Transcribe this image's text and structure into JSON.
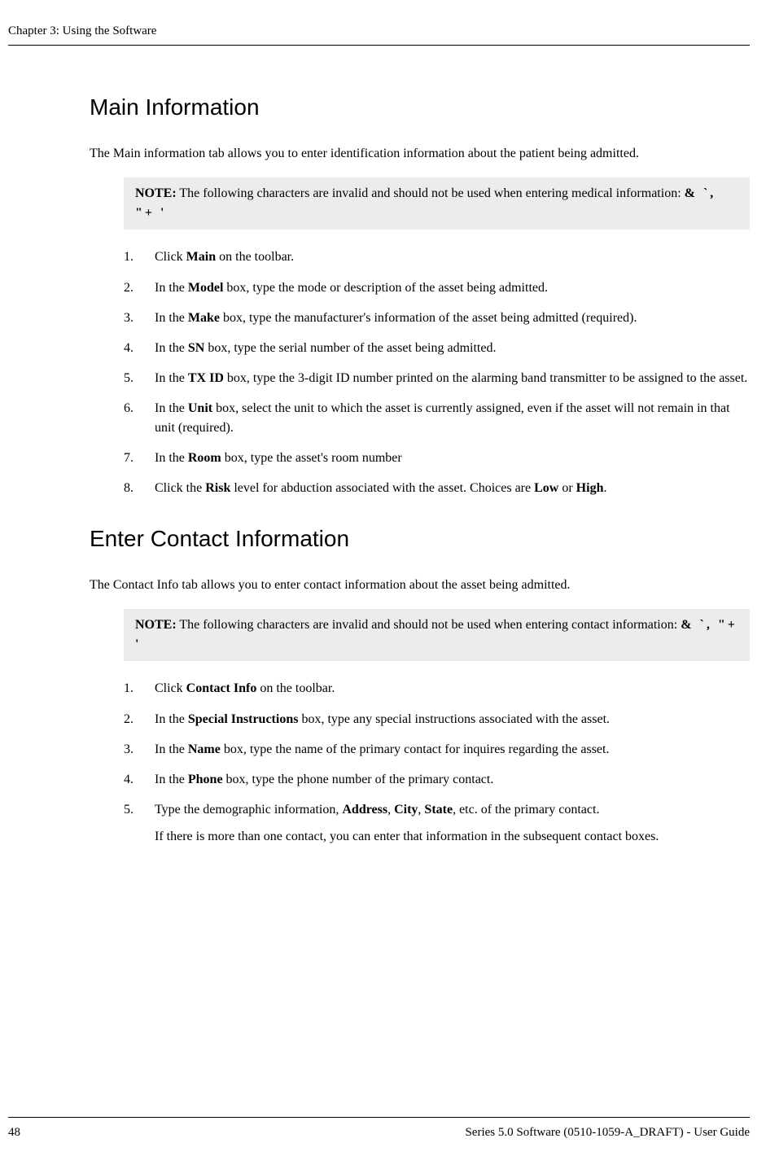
{
  "header": {
    "chapter": "Chapter 3: Using the Software"
  },
  "section1": {
    "heading": "Main Information",
    "intro": "The Main information tab allows you to enter identification information about the patient being admitted.",
    "note": {
      "label": "NOTE:",
      "text": " The following characters are invalid and should not be used when entering medical information: ",
      "chars": "&   `,   \"+   '"
    },
    "steps": [
      {
        "num": "1.",
        "prefix": "Click ",
        "bold1": "Main",
        "rest": " on the toolbar."
      },
      {
        "num": "2.",
        "prefix": "In the ",
        "bold1": "Model",
        "rest": " box, type the mode or description of the asset being admitted."
      },
      {
        "num": "3.",
        "prefix": "In the ",
        "bold1": "Make",
        "rest": " box, type the manufacturer's information of the asset being admitted (required)."
      },
      {
        "num": "4.",
        "prefix": "In the ",
        "bold1": "SN",
        "rest": " box, type the serial number of the asset being admitted."
      },
      {
        "num": "5.",
        "prefix": "In the ",
        "bold1": "TX ID",
        "rest": " box, type the 3-digit ID number printed on the alarming band transmitter to be assigned to the asset."
      },
      {
        "num": "6.",
        "prefix": "In the ",
        "bold1": "Unit",
        "rest": " box, select the unit to which the asset is currently assigned, even if the asset will not remain in that unit (required)."
      },
      {
        "num": "7.",
        "prefix": "In the ",
        "bold1": "Room",
        "rest": " box, type the asset's room number"
      },
      {
        "num": "8.",
        "prefix": "Click the ",
        "bold1": "Risk",
        "mid": " level for abduction associated with the asset. Choices are ",
        "bold2": "Low",
        "mid2": " or ",
        "bold3": "High",
        "end": "."
      }
    ]
  },
  "section2": {
    "heading": "Enter Contact Information",
    "intro": "The Contact Info tab allows you to enter contact information about the asset being admitted.",
    "note": {
      "label": "NOTE:",
      "text": " The following characters are invalid and should not be used when entering contact information: ",
      "chars": "&   `,   \"+   '"
    },
    "steps": [
      {
        "num": "1.",
        "prefix": "Click ",
        "bold1": "Contact Info",
        "rest": " on the toolbar."
      },
      {
        "num": "2.",
        "prefix": "In the ",
        "bold1": "Special Instructions",
        "rest": " box, type any special instructions associated with the asset."
      },
      {
        "num": "3.",
        "prefix": "In the ",
        "bold1": "Name",
        "rest": " box, type the name of the primary contact for inquires regarding the asset."
      },
      {
        "num": "4.",
        "prefix": "In the ",
        "bold1": "Phone",
        "rest": " box, type the phone number of the primary contact."
      },
      {
        "num": "5.",
        "prefix": "Type the demographic information, ",
        "bold1": "Address",
        "mid": ", ",
        "bold2": "City",
        "mid2": ", ",
        "bold3": "State",
        "end": ", etc. of the primary contact.",
        "extra": "If there is more than one contact, you can enter that information in the subsequent contact boxes."
      }
    ]
  },
  "footer": {
    "pageNum": "48",
    "right": "Series 5.0 Software (0510-1059-A_DRAFT) - User Guide"
  }
}
